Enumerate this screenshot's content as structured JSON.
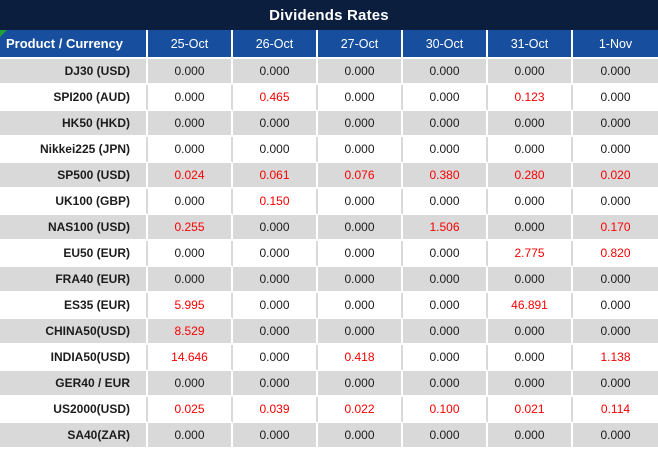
{
  "title": "Dividends Rates",
  "colors": {
    "banner_bg": "#0b1e3e",
    "header_bg": "#174f9e",
    "header_text": "#ffffff",
    "row_alt_bg": "#d9d9d9",
    "row_bg": "#ffffff",
    "value_text": "#1c1c1c",
    "nonzero_value_text": "#fa0000",
    "flag_green": "#21a038"
  },
  "table": {
    "product_header": "Product / Currency",
    "date_headers": [
      "25-Oct",
      "26-Oct",
      "27-Oct",
      "30-Oct",
      "31-Oct",
      "1-Nov"
    ],
    "rows": [
      {
        "product": "DJ30 (USD)",
        "values": [
          "0.000",
          "0.000",
          "0.000",
          "0.000",
          "0.000",
          "0.000"
        ]
      },
      {
        "product": "SPI200 (AUD)",
        "values": [
          "0.000",
          "0.465",
          "0.000",
          "0.000",
          "0.123",
          "0.000"
        ]
      },
      {
        "product": "HK50 (HKD)",
        "values": [
          "0.000",
          "0.000",
          "0.000",
          "0.000",
          "0.000",
          "0.000"
        ]
      },
      {
        "product": "Nikkei225 (JPN)",
        "values": [
          "0.000",
          "0.000",
          "0.000",
          "0.000",
          "0.000",
          "0.000"
        ]
      },
      {
        "product": "SP500 (USD)",
        "values": [
          "0.024",
          "0.061",
          "0.076",
          "0.380",
          "0.280",
          "0.020"
        ]
      },
      {
        "product": "UK100 (GBP)",
        "values": [
          "0.000",
          "0.150",
          "0.000",
          "0.000",
          "0.000",
          "0.000"
        ]
      },
      {
        "product": "NAS100 (USD)",
        "values": [
          "0.255",
          "0.000",
          "0.000",
          "1.506",
          "0.000",
          "0.170"
        ]
      },
      {
        "product": "EU50 (EUR)",
        "values": [
          "0.000",
          "0.000",
          "0.000",
          "0.000",
          "2.775",
          "0.820"
        ]
      },
      {
        "product": "FRA40 (EUR)",
        "values": [
          "0.000",
          "0.000",
          "0.000",
          "0.000",
          "0.000",
          "0.000"
        ]
      },
      {
        "product": "ES35 (EUR)",
        "values": [
          "5.995",
          "0.000",
          "0.000",
          "0.000",
          "46.891",
          "0.000"
        ]
      },
      {
        "product": "CHINA50(USD)",
        "values": [
          "8.529",
          "0.000",
          "0.000",
          "0.000",
          "0.000",
          "0.000"
        ]
      },
      {
        "product": "INDIA50(USD)",
        "values": [
          "14.646",
          "0.000",
          "0.418",
          "0.000",
          "0.000",
          "1.138"
        ]
      },
      {
        "product": "GER40 / EUR",
        "values": [
          "0.000",
          "0.000",
          "0.000",
          "0.000",
          "0.000",
          "0.000"
        ]
      },
      {
        "product": "US2000(USD)",
        "values": [
          "0.025",
          "0.039",
          "0.022",
          "0.100",
          "0.021",
          "0.114"
        ]
      },
      {
        "product": "SA40(ZAR)",
        "values": [
          "0.000",
          "0.000",
          "0.000",
          "0.000",
          "0.000",
          "0.000"
        ]
      }
    ]
  }
}
